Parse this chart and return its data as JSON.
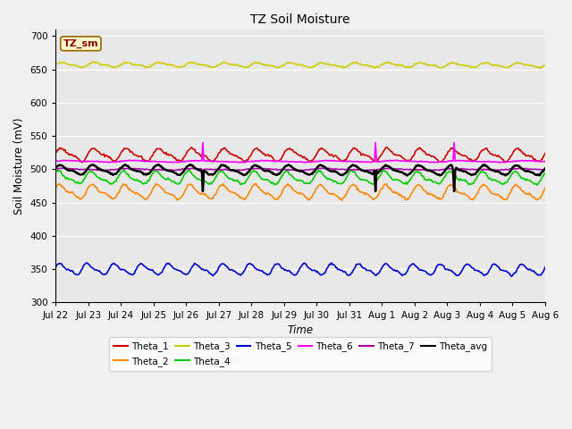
{
  "title": "TZ Soil Moisture",
  "xlabel": "Time",
  "ylabel": "Soil Moisture (mV)",
  "ylim": [
    300,
    710
  ],
  "yticks": [
    300,
    350,
    400,
    450,
    500,
    550,
    600,
    650,
    700
  ],
  "plot_bg": "#e8e8e8",
  "fig_bg": "#f0f0f0",
  "legend_label": "TZ_sm",
  "series_order": [
    "Theta_3",
    "Theta_1",
    "Theta_6",
    "Theta_avg",
    "Theta_7",
    "Theta_4",
    "Theta_2",
    "Theta_5"
  ],
  "series": {
    "Theta_1": {
      "color": "#cc0000",
      "base": 522,
      "amp": 8,
      "freq": 1.0,
      "phase": 0.2,
      "trend": -0.8,
      "noise": 0.8
    },
    "Theta_2": {
      "color": "#ff8800",
      "base": 466,
      "amp": 9,
      "freq": 1.0,
      "phase": 0.5,
      "trend": -1.2,
      "noise": 0.8
    },
    "Theta_3": {
      "color": "#cccc00",
      "base": 657,
      "amp": 3,
      "freq": 1.0,
      "phase": 0.1,
      "trend": -0.6,
      "noise": 0.5
    },
    "Theta_4": {
      "color": "#00cc00",
      "base": 487,
      "amp": 8,
      "freq": 1.0,
      "phase": 0.8,
      "trend": -0.8,
      "noise": 0.8
    },
    "Theta_5": {
      "color": "#0000cc",
      "base": 350,
      "amp": 7,
      "freq": 1.2,
      "phase": 0.3,
      "trend": -1.0,
      "noise": 0.6
    },
    "Theta_6": {
      "color": "#ff00ff",
      "base": 512,
      "amp": 1,
      "freq": 0.5,
      "phase": 0.0,
      "trend": -0.2,
      "noise": 0.3
    },
    "Theta_7": {
      "color": "#aa00aa",
      "base": 500,
      "amp": 1,
      "freq": 0.5,
      "phase": 0.5,
      "trend": -0.2,
      "noise": 0.3
    },
    "Theta_avg": {
      "color": "#000000",
      "base": 499,
      "amp": 6,
      "freq": 1.0,
      "phase": 0.4,
      "trend": -0.8,
      "noise": 0.5
    }
  },
  "n_points": 480,
  "days": 15,
  "xtick_labels": [
    "Jul 22",
    "Jul 23",
    "Jul 24",
    "Jul 25",
    "Jul 26",
    "Jul 27",
    "Jul 28",
    "Jul 29",
    "Jul 30",
    "Jul 31",
    "Aug 1",
    "Aug 2",
    "Aug 3",
    "Aug 4",
    "Aug 5",
    "Aug 6"
  ],
  "legend_row1": [
    "Theta_1",
    "Theta_2",
    "Theta_3",
    "Theta_4",
    "Theta_5",
    "Theta_6"
  ],
  "legend_row2": [
    "Theta_7",
    "Theta_avg"
  ]
}
